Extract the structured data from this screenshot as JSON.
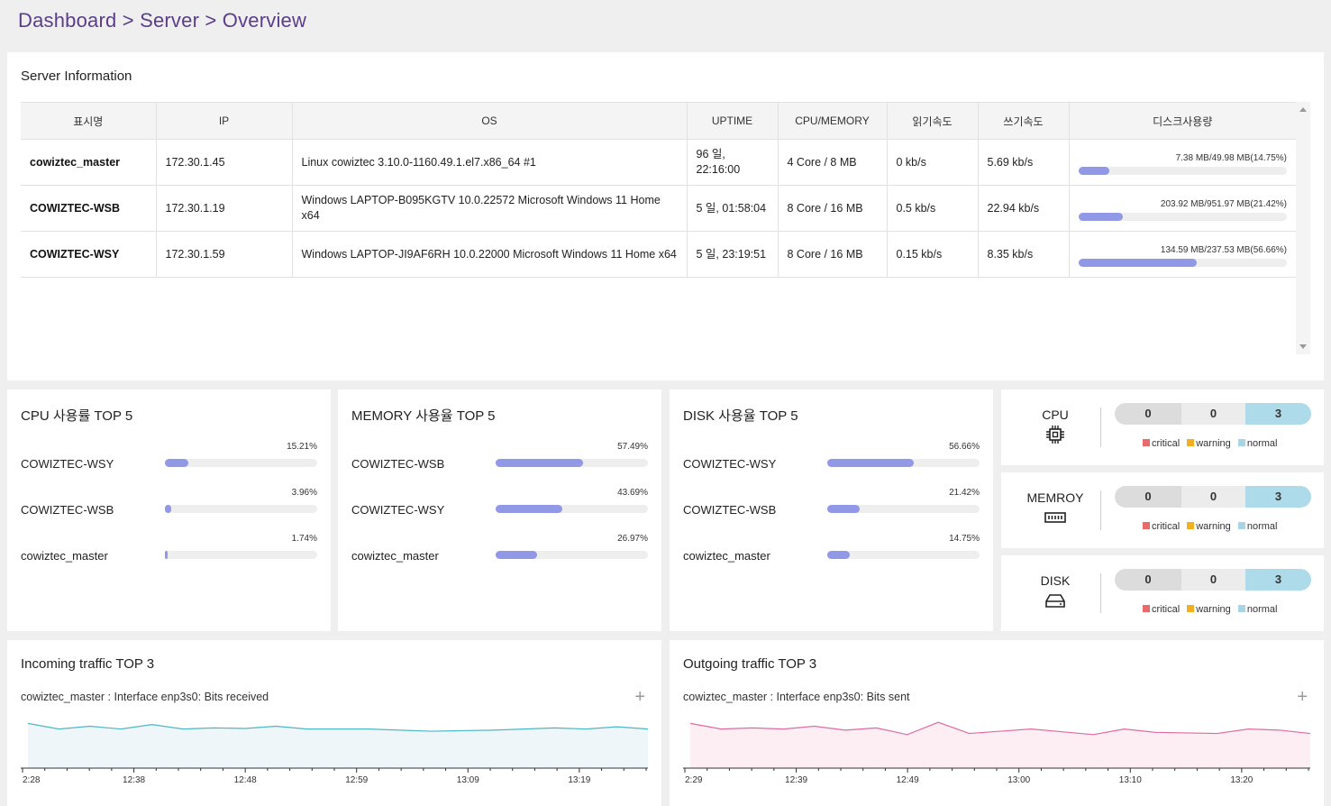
{
  "breadcrumb": "Dashboard > Server > Overview",
  "server_info": {
    "title": "Server Information",
    "columns": [
      "표시명",
      "IP",
      "OS",
      "UPTIME",
      "CPU/MEMORY",
      "읽기속도",
      "쓰기속도",
      "디스크사용량"
    ],
    "rows": [
      {
        "name": "cowiztec_master",
        "ip": "172.30.1.45",
        "os": "Linux cowiztec 3.10.0-1160.49.1.el7.x86_64 #1",
        "uptime": "96 일, 22:16:00",
        "cpu_mem": "4 Core / 8 MB",
        "read": "0 kb/s",
        "write": "5.69 kb/s",
        "disk": "7.38 MB/49.98 MB(14.75%)",
        "disk_pct": 14.75
      },
      {
        "name": "COWIZTEC-WSB",
        "ip": "172.30.1.19",
        "os": "Windows LAPTOP-B095KGTV 10.0.22572 Microsoft Windows 11 Home x64",
        "uptime": "5 일, 01:58:04",
        "cpu_mem": "8 Core / 16 MB",
        "read": "0.5 kb/s",
        "write": "22.94 kb/s",
        "disk": "203.92 MB/951.97 MB(21.42%)",
        "disk_pct": 21.42
      },
      {
        "name": "COWIZTEC-WSY",
        "ip": "172.30.1.59",
        "os": "Windows LAPTOP-JI9AF6RH 10.0.22000 Microsoft Windows 11 Home x64",
        "uptime": "5 일, 23:19:51",
        "cpu_mem": "8 Core / 16 MB",
        "read": "0.15 kb/s",
        "write": "8.35 kb/s",
        "disk": "134.59 MB/237.53 MB(56.66%)",
        "disk_pct": 56.66
      }
    ]
  },
  "cpu_top5": {
    "title": "CPU 사용률 TOP 5",
    "items": [
      {
        "name": "COWIZTEC-WSY",
        "pct_label": "15.21%",
        "pct": 15.21
      },
      {
        "name": "COWIZTEC-WSB",
        "pct_label": "3.96%",
        "pct": 3.96
      },
      {
        "name": "cowiztec_master",
        "pct_label": "1.74%",
        "pct": 1.74
      }
    ]
  },
  "memory_top5": {
    "title": "MEMORY 사용율 TOP 5",
    "items": [
      {
        "name": "COWIZTEC-WSB",
        "pct_label": "57.49%",
        "pct": 57.49
      },
      {
        "name": "COWIZTEC-WSY",
        "pct_label": "43.69%",
        "pct": 43.69
      },
      {
        "name": "cowiztec_master",
        "pct_label": "26.97%",
        "pct": 26.97
      }
    ]
  },
  "disk_top5": {
    "title": "DISK 사용율 TOP 5",
    "items": [
      {
        "name": "COWIZTEC-WSY",
        "pct_label": "56.66%",
        "pct": 56.66
      },
      {
        "name": "COWIZTEC-WSB",
        "pct_label": "21.42%",
        "pct": 21.42
      },
      {
        "name": "cowiztec_master",
        "pct_label": "14.75%",
        "pct": 14.75
      }
    ]
  },
  "status": {
    "legend": {
      "critical": "critical",
      "warning": "warning",
      "normal": "normal"
    },
    "colors": {
      "critical": "#e86a6a",
      "warning": "#f0b020",
      "normal": "#a8d4e6"
    },
    "panels": [
      {
        "label": "CPU",
        "icon": "cpu-icon",
        "critical": "0",
        "warning": "0",
        "normal": "3"
      },
      {
        "label": "MEMROY",
        "icon": "memory-icon",
        "critical": "0",
        "warning": "0",
        "normal": "3"
      },
      {
        "label": "DISK",
        "icon": "disk-icon",
        "critical": "0",
        "warning": "0",
        "normal": "3"
      }
    ]
  },
  "incoming": {
    "title": "Incoming traffic TOP 3",
    "series_label": "cowiztec_master : Interface enp3s0: Bits received",
    "plus": "+",
    "color": "#4fb6c4"
  },
  "outgoing": {
    "title": "Outgoing traffic TOP 3",
    "series_label": "cowiztec_master : Interface enp3s0: Bits sent",
    "plus": "+",
    "color": "#e06aa0"
  },
  "chart_data": [
    {
      "type": "area",
      "title": "",
      "series": [
        {
          "values": [
            0.8,
            0.7,
            0.75,
            0.7,
            0.78,
            0.7,
            0.72,
            0.71,
            0.75,
            0.7,
            0.7,
            0.7,
            0.68,
            0.66,
            0.67,
            0.68,
            0.7,
            0.72,
            0.7,
            0.74,
            0.7
          ]
        }
      ],
      "x_ticks": [
        "2:28",
        "12:38",
        "12:48",
        "12:59",
        "13:09",
        "13:19"
      ],
      "ylim": [
        0,
        1
      ]
    },
    {
      "type": "area",
      "title": "",
      "series": [
        {
          "values": [
            0.8,
            0.7,
            0.72,
            0.7,
            0.75,
            0.68,
            0.72,
            0.6,
            0.82,
            0.62,
            0.66,
            0.7,
            0.65,
            0.6,
            0.7,
            0.64,
            0.63,
            0.62,
            0.7,
            0.68,
            0.62
          ]
        }
      ],
      "x_ticks": [
        "2:29",
        "12:39",
        "12:49",
        "13:00",
        "13:10",
        "13:20"
      ],
      "ylim": [
        0,
        1
      ]
    }
  ]
}
